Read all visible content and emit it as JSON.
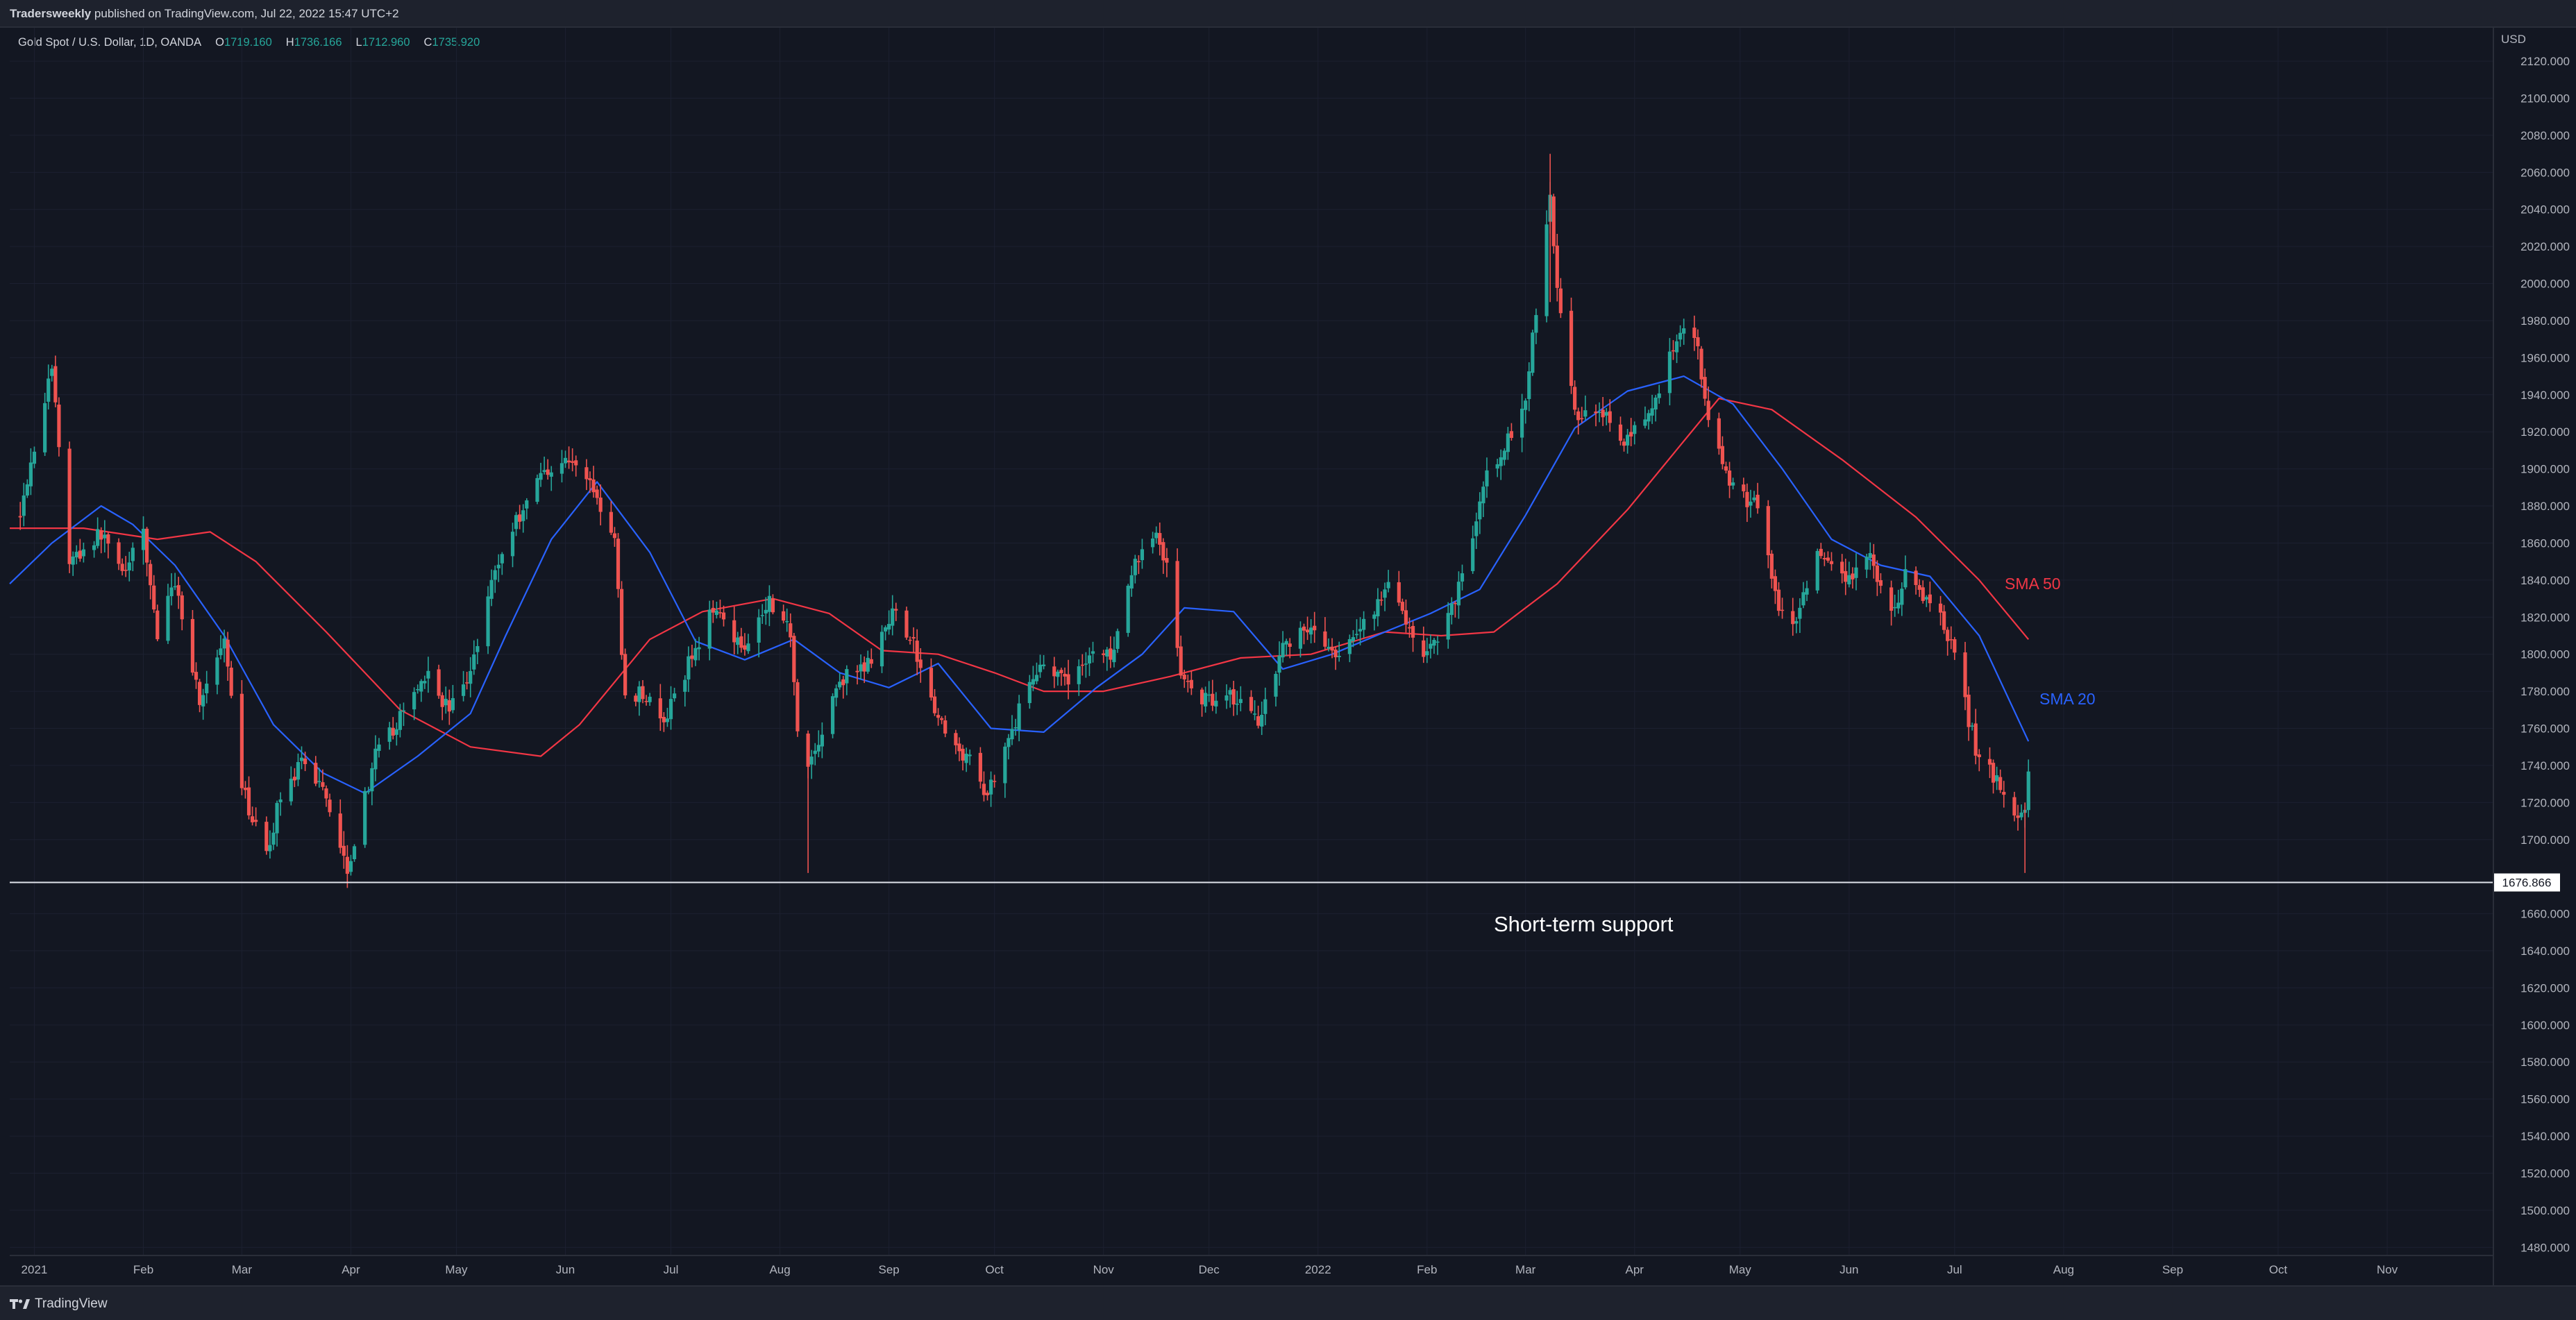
{
  "header": {
    "author": "Tradersweekly",
    "published_text": " published on TradingView.com, Jul 22, 2022 15:47 UTC+2"
  },
  "legend": {
    "symbol": "Gold Spot / U.S. Dollar, 1D, OANDA",
    "open_label": "O",
    "open": "1719.160",
    "high_label": "H",
    "high": "1736.166",
    "low_label": "L",
    "low": "1712.960",
    "close_label": "C",
    "close": "1735.920"
  },
  "footer": {
    "brand": "TradingView",
    "logo_icon": "tradingview-logo-icon"
  },
  "colors": {
    "background": "#131722",
    "up": "#26a69a",
    "down": "#ef5350",
    "sma20": "#2962ff",
    "sma50": "#f23645",
    "grid": "#1c2030"
  },
  "chart_data": {
    "type": "candlestick",
    "currency": "USD",
    "yticks": [
      "2120.000",
      "2100.000",
      "2080.000",
      "2060.000",
      "2040.000",
      "2020.000",
      "2000.000",
      "1980.000",
      "1960.000",
      "1940.000",
      "1920.000",
      "1900.000",
      "1880.000",
      "1860.000",
      "1840.000",
      "1820.000",
      "1800.000",
      "1780.000",
      "1760.000",
      "1740.000",
      "1720.000",
      "1700.000",
      "1660.000",
      "1640.000",
      "1620.000",
      "1600.000",
      "1580.000",
      "1560.000",
      "1540.000",
      "1520.000",
      "1500.000",
      "1480.000"
    ],
    "ylim": [
      1476,
      2138
    ],
    "xlim": [
      "2020-12-25",
      "2022-12-01"
    ],
    "xticks": [
      {
        "label": "2021",
        "date": "2021-01-01"
      },
      {
        "label": "Feb",
        "date": "2021-02-01"
      },
      {
        "label": "Mar",
        "date": "2021-03-01"
      },
      {
        "label": "Apr",
        "date": "2021-04-01"
      },
      {
        "label": "May",
        "date": "2021-05-01"
      },
      {
        "label": "Jun",
        "date": "2021-06-01"
      },
      {
        "label": "Jul",
        "date": "2021-07-01"
      },
      {
        "label": "Aug",
        "date": "2021-08-01"
      },
      {
        "label": "Sep",
        "date": "2021-09-01"
      },
      {
        "label": "Oct",
        "date": "2021-10-01"
      },
      {
        "label": "Nov",
        "date": "2021-11-01"
      },
      {
        "label": "Dec",
        "date": "2021-12-01"
      },
      {
        "label": "2022",
        "date": "2022-01-01"
      },
      {
        "label": "Feb",
        "date": "2022-02-01"
      },
      {
        "label": "Mar",
        "date": "2022-03-01"
      },
      {
        "label": "Apr",
        "date": "2022-04-01"
      },
      {
        "label": "May",
        "date": "2022-05-01"
      },
      {
        "label": "Jun",
        "date": "2022-06-01"
      },
      {
        "label": "Jul",
        "date": "2022-07-01"
      },
      {
        "label": "Aug",
        "date": "2022-08-01"
      },
      {
        "label": "Sep",
        "date": "2022-09-01"
      },
      {
        "label": "Oct",
        "date": "2022-10-01"
      },
      {
        "label": "Nov",
        "date": "2022-11-01"
      }
    ],
    "price_path": [
      [
        "2020-12-28",
        1878
      ],
      [
        "2021-01-06",
        1955
      ],
      [
        "2021-01-11",
        1850
      ],
      [
        "2021-01-20",
        1865
      ],
      [
        "2021-01-27",
        1845
      ],
      [
        "2021-02-01",
        1865
      ],
      [
        "2021-02-05",
        1810
      ],
      [
        "2021-02-10",
        1840
      ],
      [
        "2021-02-17",
        1775
      ],
      [
        "2021-02-24",
        1805
      ],
      [
        "2021-03-01",
        1728
      ],
      [
        "2021-03-08",
        1690
      ],
      [
        "2021-03-12",
        1725
      ],
      [
        "2021-03-18",
        1740
      ],
      [
        "2021-03-24",
        1730
      ],
      [
        "2021-03-31",
        1685
      ],
      [
        "2021-04-08",
        1745
      ],
      [
        "2021-04-15",
        1765
      ],
      [
        "2021-04-22",
        1790
      ],
      [
        "2021-04-29",
        1770
      ],
      [
        "2021-05-05",
        1790
      ],
      [
        "2021-05-10",
        1835
      ],
      [
        "2021-05-17",
        1868
      ],
      [
        "2021-05-25",
        1898
      ],
      [
        "2021-06-01",
        1905
      ],
      [
        "2021-06-08",
        1895
      ],
      [
        "2021-06-11",
        1878
      ],
      [
        "2021-06-15",
        1860
      ],
      [
        "2021-06-18",
        1775
      ],
      [
        "2021-06-23",
        1780
      ],
      [
        "2021-06-29",
        1762
      ],
      [
        "2021-07-06",
        1795
      ],
      [
        "2021-07-14",
        1828
      ],
      [
        "2021-07-21",
        1803
      ],
      [
        "2021-07-29",
        1830
      ],
      [
        "2021-08-04",
        1812
      ],
      [
        "2021-08-06",
        1762
      ],
      [
        "2021-08-09",
        1740
      ],
      [
        "2021-08-12",
        1752
      ],
      [
        "2021-08-18",
        1786
      ],
      [
        "2021-08-25",
        1792
      ],
      [
        "2021-09-01",
        1815
      ],
      [
        "2021-09-03",
        1827
      ],
      [
        "2021-09-10",
        1795
      ],
      [
        "2021-09-17",
        1755
      ],
      [
        "2021-09-23",
        1745
      ],
      [
        "2021-09-29",
        1725
      ],
      [
        "2021-10-06",
        1760
      ],
      [
        "2021-10-14",
        1797
      ],
      [
        "2021-10-21",
        1784
      ],
      [
        "2021-10-28",
        1800
      ],
      [
        "2021-11-04",
        1800
      ],
      [
        "2021-11-10",
        1850
      ],
      [
        "2021-11-16",
        1866
      ],
      [
        "2021-11-19",
        1848
      ],
      [
        "2021-11-23",
        1788
      ],
      [
        "2021-11-30",
        1775
      ],
      [
        "2021-12-06",
        1780
      ],
      [
        "2021-12-15",
        1765
      ],
      [
        "2021-12-22",
        1805
      ],
      [
        "2021-12-30",
        1815
      ],
      [
        "2022-01-07",
        1795
      ],
      [
        "2022-01-14",
        1818
      ],
      [
        "2022-01-21",
        1835
      ],
      [
        "2022-01-26",
        1820
      ],
      [
        "2022-01-31",
        1796
      ],
      [
        "2022-02-08",
        1825
      ],
      [
        "2022-02-14",
        1865
      ],
      [
        "2022-02-18",
        1895
      ],
      [
        "2022-02-24",
        1915
      ],
      [
        "2022-03-01",
        1940
      ],
      [
        "2022-03-08",
        2045
      ],
      [
        "2022-03-11",
        1980
      ],
      [
        "2022-03-15",
        1928
      ],
      [
        "2022-03-22",
        1935
      ],
      [
        "2022-03-29",
        1912
      ],
      [
        "2022-04-06",
        1932
      ],
      [
        "2022-04-13",
        1972
      ],
      [
        "2022-04-18",
        1975
      ],
      [
        "2022-04-22",
        1930
      ],
      [
        "2022-04-28",
        1890
      ],
      [
        "2022-05-06",
        1880
      ],
      [
        "2022-05-12",
        1822
      ],
      [
        "2022-05-16",
        1812
      ],
      [
        "2022-05-23",
        1852
      ],
      [
        "2022-05-31",
        1838
      ],
      [
        "2022-06-07",
        1852
      ],
      [
        "2022-06-13",
        1820
      ],
      [
        "2022-06-17",
        1842
      ],
      [
        "2022-06-24",
        1828
      ],
      [
        "2022-06-30",
        1808
      ],
      [
        "2022-07-05",
        1765
      ],
      [
        "2022-07-08",
        1742
      ],
      [
        "2022-07-13",
        1732
      ],
      [
        "2022-07-18",
        1710
      ],
      [
        "2022-07-21",
        1718
      ],
      [
        "2022-07-22",
        1736
      ]
    ],
    "sma20_path": [
      [
        "2020-12-25",
        1838
      ],
      [
        "2021-01-06",
        1860
      ],
      [
        "2021-01-20",
        1880
      ],
      [
        "2021-01-29",
        1870
      ],
      [
        "2021-02-10",
        1848
      ],
      [
        "2021-02-24",
        1810
      ],
      [
        "2021-03-10",
        1762
      ],
      [
        "2021-03-24",
        1736
      ],
      [
        "2021-04-05",
        1725
      ],
      [
        "2021-04-20",
        1745
      ],
      [
        "2021-05-05",
        1768
      ],
      [
        "2021-05-15",
        1810
      ],
      [
        "2021-05-28",
        1862
      ],
      [
        "2021-06-10",
        1893
      ],
      [
        "2021-06-25",
        1855
      ],
      [
        "2021-07-08",
        1807
      ],
      [
        "2021-07-22",
        1797
      ],
      [
        "2021-08-05",
        1808
      ],
      [
        "2021-08-18",
        1790
      ],
      [
        "2021-09-01",
        1782
      ],
      [
        "2021-09-15",
        1795
      ],
      [
        "2021-09-30",
        1760
      ],
      [
        "2021-10-15",
        1758
      ],
      [
        "2021-10-30",
        1782
      ],
      [
        "2021-11-12",
        1800
      ],
      [
        "2021-11-24",
        1825
      ],
      [
        "2021-12-08",
        1823
      ],
      [
        "2021-12-22",
        1792
      ],
      [
        "2022-01-05",
        1800
      ],
      [
        "2022-01-20",
        1812
      ],
      [
        "2022-02-02",
        1822
      ],
      [
        "2022-02-16",
        1835
      ],
      [
        "2022-03-01",
        1875
      ],
      [
        "2022-03-15",
        1922
      ],
      [
        "2022-03-30",
        1942
      ],
      [
        "2022-04-15",
        1950
      ],
      [
        "2022-04-29",
        1935
      ],
      [
        "2022-05-13",
        1900
      ],
      [
        "2022-05-27",
        1862
      ],
      [
        "2022-06-10",
        1848
      ],
      [
        "2022-06-24",
        1842
      ],
      [
        "2022-07-08",
        1810
      ],
      [
        "2022-07-22",
        1753
      ]
    ],
    "sma50_path": [
      [
        "2020-12-25",
        1868
      ],
      [
        "2021-01-15",
        1868
      ],
      [
        "2021-02-05",
        1862
      ],
      [
        "2021-02-20",
        1866
      ],
      [
        "2021-03-05",
        1850
      ],
      [
        "2021-03-25",
        1812
      ],
      [
        "2021-04-15",
        1770
      ],
      [
        "2021-05-05",
        1750
      ],
      [
        "2021-05-25",
        1745
      ],
      [
        "2021-06-05",
        1762
      ],
      [
        "2021-06-25",
        1808
      ],
      [
        "2021-07-10",
        1823
      ],
      [
        "2021-07-30",
        1830
      ],
      [
        "2021-08-15",
        1822
      ],
      [
        "2021-08-30",
        1802
      ],
      [
        "2021-09-15",
        1800
      ],
      [
        "2021-10-01",
        1790
      ],
      [
        "2021-10-15",
        1780
      ],
      [
        "2021-11-01",
        1780
      ],
      [
        "2021-11-20",
        1788
      ],
      [
        "2021-12-10",
        1798
      ],
      [
        "2021-12-30",
        1800
      ],
      [
        "2022-01-20",
        1812
      ],
      [
        "2022-02-05",
        1810
      ],
      [
        "2022-02-20",
        1812
      ],
      [
        "2022-03-10",
        1838
      ],
      [
        "2022-03-30",
        1878
      ],
      [
        "2022-04-15",
        1915
      ],
      [
        "2022-04-25",
        1938
      ],
      [
        "2022-05-10",
        1932
      ],
      [
        "2022-05-30",
        1905
      ],
      [
        "2022-06-20",
        1874
      ],
      [
        "2022-07-08",
        1840
      ],
      [
        "2022-07-22",
        1808
      ]
    ],
    "annotations": {
      "sma50_label": "SMA 50",
      "sma20_label": "SMA 20",
      "support_label": "Short-term support",
      "support_level": 1676.866,
      "support_value_label": "1676.866"
    }
  }
}
